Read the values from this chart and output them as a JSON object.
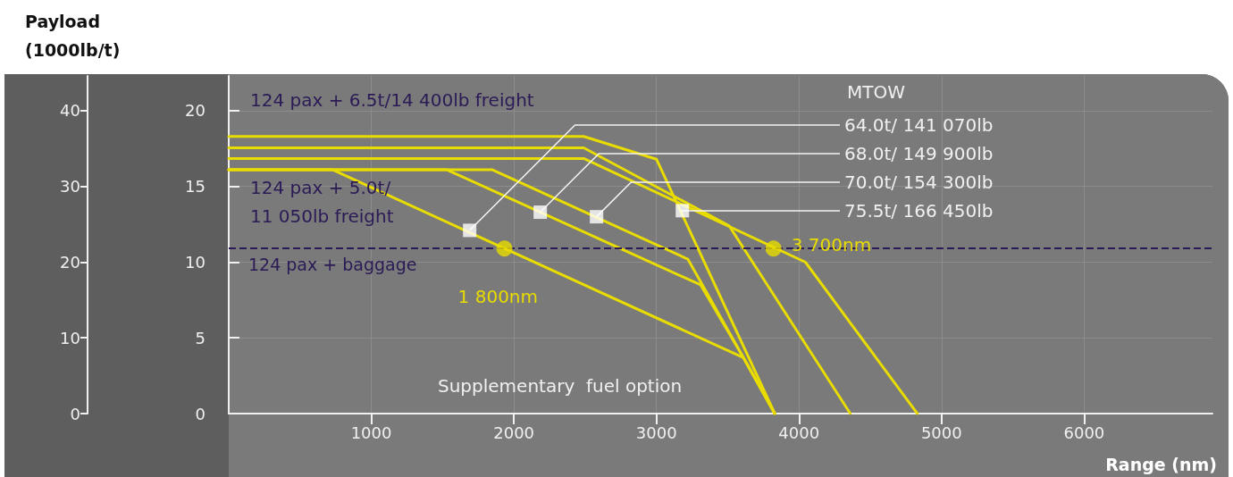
{
  "chart_data": {
    "type": "line",
    "xlabel": "Range (nm)",
    "y2label": "Payload\n(1000lb/t)",
    "xlim": [
      0,
      6900
    ],
    "xticks": [
      1000,
      2000,
      3000,
      4000,
      5000,
      6000
    ],
    "ylim": [
      0,
      22.3
    ],
    "yticks": [
      0,
      5,
      10,
      15,
      20
    ],
    "y2lim": [
      0,
      44.6
    ],
    "y2ticks": [
      0,
      10,
      20,
      30,
      40
    ],
    "grid": true,
    "series": [
      {
        "color": "#e8dc00",
        "marker": "none",
        "x": [
          0,
          730,
          1934,
          3610,
          3830
        ],
        "values": [
          16.1,
          16.1,
          10.9,
          3.7,
          0
        ]
      },
      {
        "color": "#e8dc00",
        "marker": "none",
        "x": [
          0,
          1530,
          3310,
          3610,
          3830
        ],
        "values": [
          16.1,
          16.1,
          8.5,
          3.7,
          0
        ]
      },
      {
        "color": "#e8dc00",
        "marker": "none",
        "x": [
          0,
          1850,
          3220,
          3610,
          3830
        ],
        "values": [
          16.1,
          16.1,
          10.2,
          3.7,
          0
        ]
      },
      {
        "color": "#e8dc00",
        "marker": "none",
        "x": [
          0,
          2490,
          3000,
          3830
        ],
        "values": [
          18.3,
          18.3,
          16.8,
          0
        ]
      },
      {
        "color": "#e8dc00",
        "marker": "none",
        "x": [
          0,
          2490,
          3510,
          4360
        ],
        "values": [
          17.55,
          17.55,
          12.4,
          0
        ]
      },
      {
        "color": "#e8dc00",
        "marker": "none",
        "x": [
          0,
          2490,
          4045,
          4830
        ],
        "values": [
          16.85,
          16.85,
          10.0,
          0
        ]
      },
      {
        "type": "scatter",
        "color": "#ffffff",
        "marker": "square",
        "x": [
          1690,
          2185,
          2580,
          3182
        ],
        "values": [
          12.1,
          13.3,
          13.0,
          13.4
        ]
      },
      {
        "type": "scatter",
        "color": "#e8dc00",
        "marker": "circle",
        "x": [
          1934,
          3821
        ],
        "values": [
          10.9,
          10.9
        ]
      }
    ],
    "ref_lines": [
      {
        "axis": "y",
        "value": 10.9,
        "label": "124 pax + baggage",
        "color": "#2b1a55",
        "line_style": "dashed"
      }
    ],
    "annotations": [
      "124 pax + 6.5t/14 400lb freight",
      "124 pax + 5.0t/\n11 050lb freight",
      "MTOW",
      {
        "text": "64.0t/ 141 070lb",
        "x": 1690,
        "y": 12.1
      },
      {
        "text": "68.0t/ 149 900lb",
        "x": 2185,
        "y": 13.3
      },
      {
        "text": "70.0t/ 154 300lb",
        "x": 2580,
        "y": 13.0
      },
      {
        "text": "75.5t/ 166 450lb",
        "x": 3182,
        "y": 13.4
      },
      {
        "text": "1 800nm",
        "x": 1934,
        "y": 10.9
      },
      {
        "text": "3 700nm",
        "x": 3821,
        "y": 10.9
      },
      "Supplementary  fuel option"
    ]
  }
}
